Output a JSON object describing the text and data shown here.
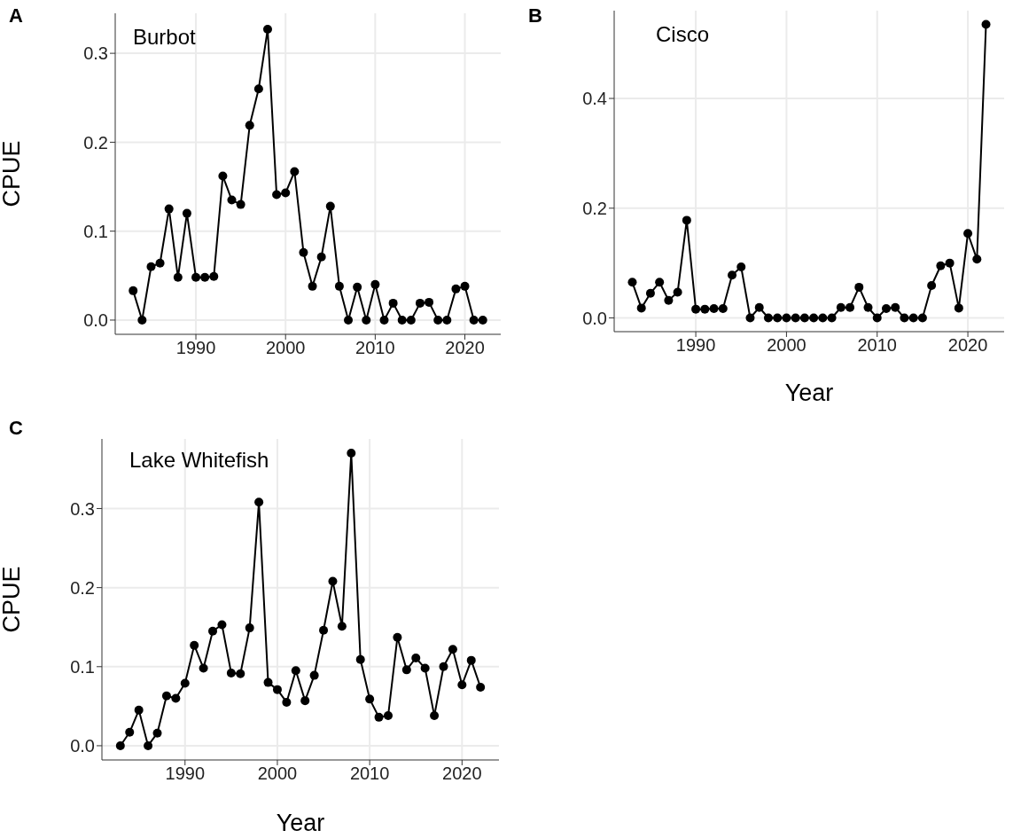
{
  "chart_data": [
    {
      "type": "line",
      "title": "Burbot",
      "ylabel": "CPUE",
      "annotations": [
        "A"
      ],
      "grid": true,
      "marker": "circle",
      "line_style": "solid",
      "x": [
        1983,
        1984,
        1985,
        1986,
        1987,
        1988,
        1989,
        1990,
        1991,
        1992,
        1993,
        1994,
        1995,
        1996,
        1997,
        1998,
        1999,
        2000,
        2001,
        2002,
        2003,
        2004,
        2005,
        2006,
        2007,
        2008,
        2009,
        2010,
        2011,
        2012,
        2013,
        2014,
        2015,
        2016,
        2017,
        2018,
        2019,
        2020,
        2021,
        2022
      ],
      "series": [
        {
          "color": "#000000",
          "values": [
            0.033,
            0,
            0.06,
            0.064,
            0.125,
            0.048,
            0.12,
            0.048,
            0.048,
            0.049,
            0.162,
            0.135,
            0.13,
            0.219,
            0.26,
            0.327,
            0.141,
            0.143,
            0.167,
            0.076,
            0.038,
            0.071,
            0.128,
            0.038,
            0,
            0.037,
            0,
            0.04,
            0,
            0.019,
            0,
            0,
            0.019,
            0.02,
            0,
            0,
            0.035,
            0.038,
            0,
            0
          ]
        }
      ],
      "xlim": [
        1981,
        2024
      ],
      "xticks": [
        1990,
        2000,
        2010,
        2020
      ],
      "ylim": [
        -0.016,
        0.345
      ],
      "yticks": [
        {
          "value": 0,
          "label": "0.0"
        },
        {
          "value": 0.1,
          "label": "0.1"
        },
        {
          "value": 0.2,
          "label": "0.2"
        },
        {
          "value": 0.3,
          "label": "0.3"
        }
      ]
    },
    {
      "type": "line",
      "title": "Cisco",
      "xlabel": "Year",
      "annotations": [
        "B"
      ],
      "grid": true,
      "marker": "circle",
      "line_style": "solid",
      "x": [
        1983,
        1984,
        1985,
        1986,
        1987,
        1988,
        1989,
        1990,
        1991,
        1992,
        1993,
        1994,
        1995,
        1996,
        1997,
        1998,
        1999,
        2000,
        2001,
        2002,
        2003,
        2004,
        2005,
        2006,
        2007,
        2008,
        2009,
        2010,
        2011,
        2012,
        2013,
        2014,
        2015,
        2016,
        2017,
        2018,
        2019,
        2020,
        2021,
        2022
      ],
      "series": [
        {
          "color": "#000000",
          "values": [
            0.065,
            0.018,
            0.045,
            0.065,
            0.032,
            0.047,
            0.178,
            0.016,
            0.016,
            0.017,
            0.017,
            0.078,
            0.093,
            0,
            0.019,
            0,
            0,
            0,
            0,
            0,
            0,
            0,
            0,
            0.019,
            0.019,
            0.056,
            0.019,
            0,
            0.017,
            0.019,
            0,
            0,
            0,
            0.059,
            0.095,
            0.1,
            0.018,
            0.154,
            0.107,
            0.535
          ]
        }
      ],
      "xlim": [
        1981,
        2024
      ],
      "xticks": [
        1990,
        2000,
        2010,
        2020
      ],
      "ylim": [
        -0.025,
        0.56
      ],
      "yticks": [
        {
          "value": 0,
          "label": "0.0"
        },
        {
          "value": 0.2,
          "label": "0.2"
        },
        {
          "value": 0.4,
          "label": "0.4"
        }
      ]
    },
    {
      "type": "line",
      "title": "Lake Whitefish",
      "xlabel": "Year",
      "ylabel": "CPUE",
      "annotations": [
        "C"
      ],
      "grid": true,
      "marker": "circle",
      "line_style": "solid",
      "x": [
        1983,
        1984,
        1985,
        1986,
        1987,
        1988,
        1989,
        1990,
        1991,
        1992,
        1993,
        1994,
        1995,
        1996,
        1997,
        1998,
        1999,
        2000,
        2001,
        2002,
        2003,
        2004,
        2005,
        2006,
        2007,
        2008,
        2009,
        2010,
        2011,
        2012,
        2013,
        2014,
        2015,
        2016,
        2017,
        2018,
        2019,
        2020,
        2021,
        2022
      ],
      "series": [
        {
          "color": "#000000",
          "values": [
            0,
            0.017,
            0.045,
            0,
            0.016,
            0.063,
            0.06,
            0.079,
            0.127,
            0.098,
            0.145,
            0.153,
            0.092,
            0.091,
            0.149,
            0.308,
            0.08,
            0.071,
            0.055,
            0.095,
            0.057,
            0.089,
            0.146,
            0.208,
            0.151,
            0.37,
            0.109,
            0.059,
            0.036,
            0.038,
            0.137,
            0.096,
            0.111,
            0.098,
            0.038,
            0.1,
            0.122,
            0.077,
            0.108,
            0.074
          ]
        }
      ],
      "xlim": [
        1981,
        2024
      ],
      "xticks": [
        1990,
        2000,
        2010,
        2020
      ],
      "ylim": [
        -0.018,
        0.388
      ],
      "yticks": [
        {
          "value": 0,
          "label": "0.0"
        },
        {
          "value": 0.1,
          "label": "0.1"
        },
        {
          "value": 0.2,
          "label": "0.2"
        },
        {
          "value": 0.3,
          "label": "0.3"
        }
      ]
    }
  ]
}
